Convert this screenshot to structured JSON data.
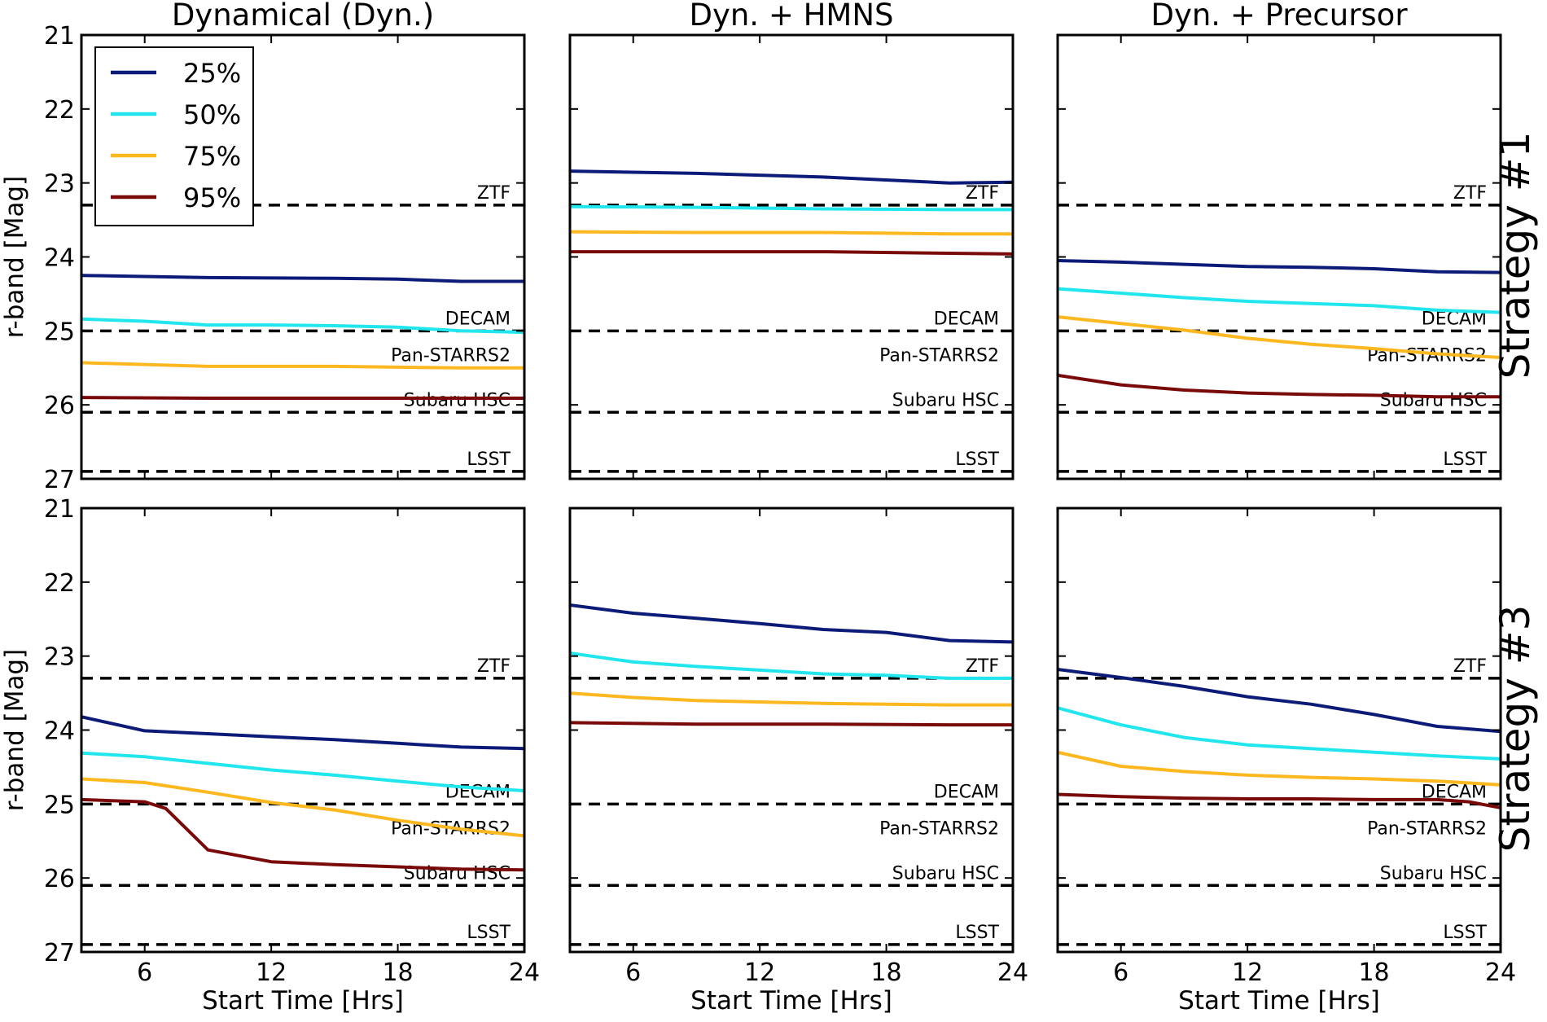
{
  "chart_data": {
    "type": "line",
    "x_label": "Start Time [Hrs]",
    "y_label": "r-band [Mag]",
    "xlim": [
      3,
      24
    ],
    "ylim": [
      21,
      27
    ],
    "y_inverted": true,
    "x_ticks": [
      6,
      12,
      18,
      24
    ],
    "y_ticks": [
      21,
      22,
      23,
      24,
      25,
      26,
      27
    ],
    "column_titles": [
      "Dynamical (Dyn.)",
      "Dyn. + HMNS",
      "Dyn. + Precursor"
    ],
    "row_labels": [
      "Strategy #1",
      "Strategy #3"
    ],
    "legend": {
      "location": "upper-left",
      "entries": [
        {
          "label": "25%",
          "color": "#0d1b78"
        },
        {
          "label": "50%",
          "color": "#22e6ee"
        },
        {
          "label": "75%",
          "color": "#fdb71f"
        },
        {
          "label": "95%",
          "color": "#7a0a0a"
        }
      ]
    },
    "survey_limits": [
      {
        "name": "ZTF",
        "mag": 23.3
      },
      {
        "name": "DECAM",
        "mag": 25.0
      },
      {
        "name": "Pan-STARRS2",
        "mag": 25.0
      },
      {
        "name": "Subaru HSC",
        "mag": 26.1
      },
      {
        "name": "LSST",
        "mag": 26.9
      }
    ],
    "panels": [
      {
        "row": 0,
        "col": 0,
        "series": [
          {
            "name": "25%",
            "x": [
              3,
              9,
              15,
              18,
              21,
              24
            ],
            "y": [
              24.25,
              24.28,
              24.29,
              24.3,
              24.33,
              24.33
            ]
          },
          {
            "name": "50%",
            "x": [
              3,
              6,
              9,
              12,
              15,
              18,
              21,
              24
            ],
            "y": [
              24.84,
              24.87,
              24.92,
              24.92,
              24.93,
              24.95,
              25.0,
              25.02
            ]
          },
          {
            "name": "75%",
            "x": [
              3,
              9,
              15,
              21,
              24
            ],
            "y": [
              25.43,
              25.48,
              25.48,
              25.5,
              25.5
            ]
          },
          {
            "name": "95%",
            "x": [
              3,
              9,
              15,
              21,
              24
            ],
            "y": [
              25.9,
              25.91,
              25.91,
              25.91,
              25.91
            ]
          }
        ]
      },
      {
        "row": 0,
        "col": 1,
        "series": [
          {
            "name": "25%",
            "x": [
              3,
              9,
              15,
              21,
              24
            ],
            "y": [
              22.84,
              22.87,
              22.92,
              23.0,
              22.99
            ]
          },
          {
            "name": "50%",
            "x": [
              3,
              9,
              15,
              21,
              24
            ],
            "y": [
              23.32,
              23.33,
              23.35,
              23.36,
              23.36
            ]
          },
          {
            "name": "75%",
            "x": [
              3,
              9,
              15,
              21,
              24
            ],
            "y": [
              23.66,
              23.67,
              23.67,
              23.69,
              23.69
            ]
          },
          {
            "name": "95%",
            "x": [
              3,
              9,
              15,
              21,
              24
            ],
            "y": [
              23.93,
              23.93,
              23.93,
              23.95,
              23.96
            ]
          }
        ]
      },
      {
        "row": 0,
        "col": 2,
        "series": [
          {
            "name": "25%",
            "x": [
              3,
              6,
              9,
              12,
              15,
              18,
              21,
              24
            ],
            "y": [
              24.05,
              24.07,
              24.1,
              24.13,
              24.14,
              24.16,
              24.2,
              24.21
            ]
          },
          {
            "name": "50%",
            "x": [
              3,
              6,
              9,
              12,
              15,
              18,
              21,
              24
            ],
            "y": [
              24.43,
              24.49,
              24.55,
              24.6,
              24.63,
              24.66,
              24.72,
              24.75
            ]
          },
          {
            "name": "75%",
            "x": [
              3,
              6,
              9,
              12,
              15,
              18,
              21,
              24
            ],
            "y": [
              24.81,
              24.9,
              24.99,
              25.1,
              25.18,
              25.24,
              25.31,
              25.36
            ]
          },
          {
            "name": "95%",
            "x": [
              3,
              6,
              9,
              12,
              15,
              18,
              21,
              24
            ],
            "y": [
              25.6,
              25.73,
              25.8,
              25.84,
              25.86,
              25.87,
              25.89,
              25.89
            ]
          }
        ]
      },
      {
        "row": 1,
        "col": 0,
        "series": [
          {
            "name": "25%",
            "x": [
              3,
              6,
              9,
              12,
              15,
              18,
              21,
              24
            ],
            "y": [
              23.82,
              24.01,
              24.05,
              24.09,
              24.13,
              24.18,
              24.23,
              24.25
            ]
          },
          {
            "name": "50%",
            "x": [
              3,
              6,
              9,
              12,
              15,
              18,
              21,
              24
            ],
            "y": [
              24.31,
              24.36,
              24.45,
              24.54,
              24.61,
              24.69,
              24.77,
              24.82
            ]
          },
          {
            "name": "75%",
            "x": [
              3,
              6,
              9,
              12,
              15,
              18,
              21,
              24
            ],
            "y": [
              24.66,
              24.71,
              24.84,
              24.98,
              25.08,
              25.22,
              25.34,
              25.43
            ]
          },
          {
            "name": "95%",
            "x": [
              3,
              6,
              7,
              9,
              12,
              15,
              18,
              21,
              24
            ],
            "y": [
              24.94,
              24.97,
              25.06,
              25.62,
              25.78,
              25.82,
              25.85,
              25.88,
              25.89
            ]
          }
        ]
      },
      {
        "row": 1,
        "col": 1,
        "series": [
          {
            "name": "25%",
            "x": [
              3,
              6,
              9,
              12,
              15,
              18,
              21,
              24
            ],
            "y": [
              22.31,
              22.42,
              22.49,
              22.56,
              22.64,
              22.68,
              22.79,
              22.81
            ]
          },
          {
            "name": "50%",
            "x": [
              3,
              6,
              9,
              12,
              15,
              18,
              21,
              24
            ],
            "y": [
              22.96,
              23.08,
              23.14,
              23.19,
              23.24,
              23.26,
              23.3,
              23.3
            ]
          },
          {
            "name": "75%",
            "x": [
              3,
              6,
              9,
              12,
              15,
              18,
              21,
              24
            ],
            "y": [
              23.5,
              23.56,
              23.6,
              23.62,
              23.64,
              23.65,
              23.66,
              23.66
            ]
          },
          {
            "name": "95%",
            "x": [
              3,
              9,
              15,
              21,
              24
            ],
            "y": [
              23.9,
              23.92,
              23.92,
              23.93,
              23.93
            ]
          }
        ]
      },
      {
        "row": 1,
        "col": 2,
        "series": [
          {
            "name": "25%",
            "x": [
              3,
              6,
              9,
              12,
              15,
              18,
              21,
              24
            ],
            "y": [
              23.18,
              23.29,
              23.41,
              23.55,
              23.65,
              23.79,
              23.95,
              24.02
            ]
          },
          {
            "name": "50%",
            "x": [
              3,
              6,
              9,
              12,
              15,
              18,
              21,
              24
            ],
            "y": [
              23.7,
              23.93,
              24.1,
              24.2,
              24.25,
              24.3,
              24.35,
              24.39
            ]
          },
          {
            "name": "75%",
            "x": [
              3,
              6,
              9,
              12,
              15,
              18,
              21,
              24
            ],
            "y": [
              24.3,
              24.49,
              24.56,
              24.61,
              24.64,
              24.66,
              24.69,
              24.74
            ]
          },
          {
            "name": "95%",
            "x": [
              3,
              6,
              9,
              12,
              15,
              18,
              21,
              22.5,
              24
            ],
            "y": [
              24.87,
              24.9,
              24.92,
              24.93,
              24.93,
              24.94,
              24.94,
              24.97,
              25.05
            ]
          }
        ]
      }
    ]
  }
}
